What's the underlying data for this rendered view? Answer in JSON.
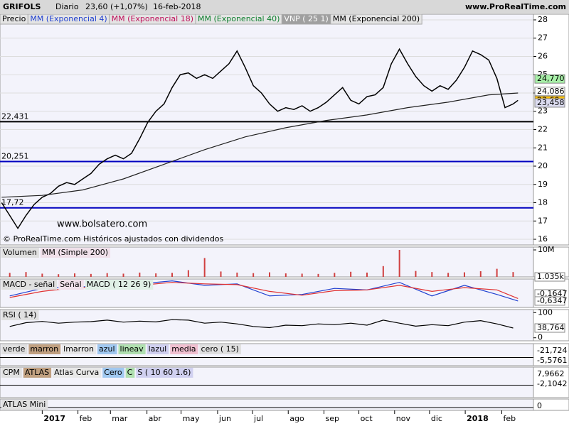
{
  "header": {
    "title": "GRIFOLS",
    "period": "Diario",
    "quote": "23,60 (+1,07%)",
    "date": "16-feb-2018",
    "site": "www.ProRealTime.com"
  },
  "legend": [
    {
      "label": "Precio",
      "color": "#000000"
    },
    {
      "label": "MM (Exponencial 4)",
      "color": "#2040d0"
    },
    {
      "label": "MM (Exponencial 18)",
      "color": "#c0105a"
    },
    {
      "label": "MM (Exponencial 40)",
      "color": "#108030"
    },
    {
      "label": "VNP ( 25 1)",
      "color": "#ffffff"
    },
    {
      "label": "MM (Exponencial 200)",
      "color": "#000000"
    }
  ],
  "watermark": "www.bolsatero.com",
  "copyright": "© ProRealTime.com  Históricos ajustados con dividendos",
  "chart_data": [
    {
      "type": "line",
      "xlim": [
        -5.2,
        60.5
      ],
      "xticks": [
        {
          "value": 0,
          "label": "2017"
        },
        {
          "value": 4.4,
          "label": "feb"
        },
        {
          "value": 8.4,
          "label": "mar"
        },
        {
          "value": 12.9,
          "label": "abr"
        },
        {
          "value": 17.1,
          "label": "may"
        },
        {
          "value": 21.6,
          "label": "jun"
        },
        {
          "value": 25.9,
          "label": "jul"
        },
        {
          "value": 30.3,
          "label": "ago"
        },
        {
          "value": 34.7,
          "label": "sep"
        },
        {
          "value": 39,
          "label": "oct"
        },
        {
          "value": 43.4,
          "label": "nov"
        },
        {
          "value": 47.7,
          "label": "dic"
        },
        {
          "value": 52.1,
          "label": "2018"
        },
        {
          "value": 56.6,
          "label": "feb"
        }
      ],
      "ylim": [
        15.69,
        28.31
      ],
      "yticks": [
        16,
        17,
        18,
        19,
        20,
        21,
        22,
        23,
        24,
        25,
        26,
        27,
        28
      ],
      "series": [
        {
          "color": "#000000",
          "x": [
            -5,
            -4,
            -3,
            -2,
            -1,
            0,
            1,
            2,
            3,
            4,
            5,
            6,
            7,
            8,
            9,
            10,
            11,
            12,
            13,
            14,
            15,
            16,
            17,
            18,
            19,
            20,
            21,
            22,
            23,
            24,
            25,
            26,
            27,
            28,
            29,
            30,
            31,
            32,
            33,
            34,
            35,
            36,
            37,
            38,
            39,
            40,
            41,
            42,
            43,
            44,
            45,
            46,
            47,
            48,
            49,
            50,
            51,
            52,
            53,
            54,
            55,
            56,
            57,
            58,
            58.6
          ],
          "values": [
            18.0,
            17.3,
            16.6,
            17.3,
            17.9,
            18.3,
            18.5,
            18.9,
            19.1,
            19.0,
            19.3,
            19.6,
            20.1,
            20.4,
            20.6,
            20.4,
            20.7,
            21.5,
            22.4,
            23.0,
            23.4,
            24.3,
            25.0,
            25.1,
            24.8,
            25.0,
            24.8,
            25.2,
            25.6,
            26.3,
            25.4,
            24.4,
            24.0,
            23.4,
            23.0,
            23.2,
            23.1,
            23.3,
            23.0,
            23.2,
            23.5,
            23.9,
            24.3,
            23.6,
            23.4,
            23.8,
            23.9,
            24.3,
            25.6,
            26.4,
            25.6,
            24.9,
            24.4,
            24.1,
            24.4,
            24.2,
            24.7,
            25.4,
            26.3,
            26.1,
            25.8,
            24.8,
            23.2,
            23.4,
            23.6
          ]
        },
        {
          "color": "#202020",
          "x": [
            -5,
            0,
            5,
            10,
            15,
            20,
            25,
            30,
            35,
            40,
            45,
            50,
            55,
            58.6
          ],
          "values": [
            18.3,
            18.4,
            18.7,
            19.3,
            20.1,
            20.9,
            21.6,
            22.1,
            22.5,
            22.8,
            23.2,
            23.5,
            23.9,
            24.0
          ]
        }
      ],
      "levels": [
        {
          "value": 22.431,
          "label": "22,431",
          "color": "#000000"
        },
        {
          "value": 20.251,
          "label": "20,251",
          "color": "#0000c0"
        },
        {
          "value": 17.72,
          "label": "17,72",
          "color": "#0000c0"
        }
      ],
      "last_values": [
        {
          "value": 24.77,
          "label": "24,770",
          "color": "#a8f0a8"
        },
        {
          "value": 24.086,
          "label": "24,086",
          "color": "#ffffff"
        },
        {
          "value": 23.6,
          "label": "23,60",
          "color": "#ffc000"
        },
        {
          "value": 23.458,
          "label": "23,458",
          "color": "#dcdcf0"
        }
      ]
    },
    {
      "type": "bar",
      "labels": [
        "Volumen",
        "MM (Simple 200)"
      ],
      "ylim": [
        0,
        11050000
      ],
      "yticks": [
        {
          "value": 10000000,
          "label": "10M"
        }
      ],
      "color": "#d04040",
      "x": [
        -4,
        -2,
        0,
        2,
        4,
        6,
        8,
        10,
        12,
        14,
        16,
        18,
        20,
        22,
        24,
        26,
        28,
        30,
        32,
        34,
        36,
        38,
        40,
        42,
        44,
        46,
        48,
        50,
        52,
        54,
        56,
        58
      ],
      "values": [
        1500000,
        1800000,
        1200000,
        1000000,
        1300000,
        1100000,
        1400000,
        1200000,
        1600000,
        1300000,
        1500000,
        2500000,
        7000000,
        2000000,
        1600000,
        1400000,
        1700000,
        1300000,
        1200000,
        1100000,
        1500000,
        1900000,
        1600000,
        4000000,
        10000000,
        2200000,
        1800000,
        1500000,
        1700000,
        2100000,
        3000000,
        1800000
      ],
      "last_values": [
        {
          "value": 1035,
          "label": "1.035k",
          "color": "#ffffff"
        }
      ]
    },
    {
      "type": "line",
      "labels": [
        "MACD - señal",
        "Señal",
        "MACD ( 12 26 9)"
      ],
      "ylim": [
        -1.06,
        0.82
      ],
      "series": [
        {
          "color": "#2040d0",
          "x": [
            -4,
            0,
            4,
            8,
            12,
            16,
            20,
            24,
            28,
            32,
            36,
            40,
            44,
            48,
            52,
            56,
            58.6
          ],
          "values": [
            -0.3,
            0.2,
            0.3,
            0.35,
            0.5,
            0.7,
            0.4,
            0.5,
            -0.3,
            -0.2,
            0.2,
            0.1,
            0.6,
            -0.3,
            0.4,
            -0.2,
            -0.63
          ]
        },
        {
          "color": "#e03030",
          "x": [
            -4,
            0,
            4,
            8,
            12,
            16,
            20,
            24,
            28,
            32,
            36,
            40,
            44,
            48,
            52,
            56,
            58.6
          ],
          "values": [
            -0.4,
            0.0,
            0.25,
            0.3,
            0.4,
            0.6,
            0.5,
            0.45,
            0.0,
            -0.25,
            0.05,
            0.1,
            0.4,
            0.0,
            0.25,
            0.1,
            -0.47
          ]
        }
      ],
      "last_values": [
        {
          "value": -0.1647,
          "label": "-0,1647",
          "color": "#ffffff"
        },
        {
          "value": -0.6347,
          "label": "-0,6347",
          "color": "#ffffff"
        }
      ]
    },
    {
      "type": "line",
      "labels": [
        "RSI ( 14)"
      ],
      "ylim": [
        -12,
        112
      ],
      "yticks": [
        100,
        0
      ],
      "series": [
        {
          "color": "#000000",
          "x": [
            -4,
            -2,
            0,
            2,
            4,
            6,
            8,
            10,
            12,
            14,
            16,
            18,
            20,
            22,
            24,
            26,
            28,
            30,
            32,
            34,
            36,
            38,
            40,
            42,
            44,
            46,
            48,
            50,
            52,
            54,
            56,
            58
          ],
          "values": [
            45,
            60,
            65,
            58,
            62,
            64,
            70,
            62,
            66,
            63,
            72,
            70,
            58,
            62,
            55,
            45,
            40,
            50,
            48,
            55,
            52,
            58,
            50,
            70,
            58,
            46,
            52,
            48,
            62,
            68,
            55,
            38.764
          ]
        }
      ],
      "last_values": [
        {
          "value": 38.764,
          "label": "38,764",
          "color": "#ffffff"
        }
      ]
    }
  ],
  "indicator_panels": [
    {
      "labels": [
        "verde",
        "marron",
        "lmarron",
        "azul",
        "lineav",
        "lazul",
        "media",
        "cero ( 15)"
      ],
      "value_texts": [
        "-21,724",
        "-5,5761"
      ]
    },
    {
      "labels": [
        "CPM",
        "ATLAS",
        "Atlas Curva",
        "Cero",
        "C",
        "S ( 10 60 1.6)"
      ],
      "value_texts": [
        "7,9662",
        "-2,1042"
      ]
    },
    {
      "labels": [
        "ATLAS Mini"
      ],
      "value_texts": [
        "0"
      ]
    }
  ]
}
